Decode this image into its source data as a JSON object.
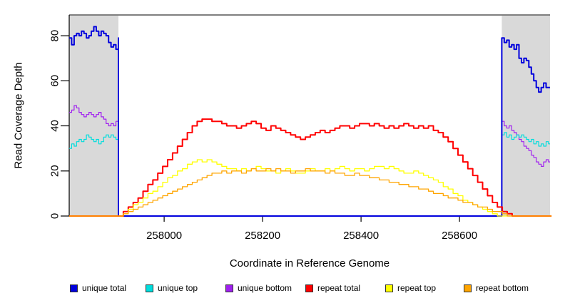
{
  "chart_data": {
    "type": "line",
    "title": "",
    "xlabel": "Coordinate in Reference Genome",
    "ylabel": "Read Coverage Depth",
    "xlim": [
      257807,
      258784
    ],
    "ylim": [
      0,
      89.2
    ],
    "xticks": [
      258000,
      258200,
      258400,
      258600
    ],
    "yticks": [
      0,
      20,
      40,
      60,
      80
    ],
    "grid": false,
    "legend_position": "bottom",
    "shade_color": "#d9d9d9",
    "shaded_regions": [
      {
        "x0": 257807,
        "x1": 257907
      },
      {
        "x0": 258686,
        "x1": 258784
      }
    ],
    "draw_order": [
      2,
      1,
      0,
      3,
      4,
      5
    ],
    "unique_x": [
      257807,
      257812,
      257817,
      257822,
      257827,
      257832,
      257837,
      257842,
      257847,
      257852,
      257857,
      257862,
      257867,
      257872,
      257877,
      257882,
      257887,
      257892,
      257897,
      257902,
      257907,
      257907,
      258686,
      258686,
      258691,
      258696,
      258701,
      258706,
      258711,
      258716,
      258721,
      258726,
      258731,
      258736,
      258741,
      258746,
      258751,
      258756,
      258761,
      258766,
      258771,
      258776,
      258781,
      258784
    ],
    "series": [
      {
        "id": "unique-total",
        "name": "unique total",
        "color": "#0000dd",
        "lw": 2,
        "x_ref": "unique_x",
        "y": [
          79,
          76,
          80,
          81,
          80,
          82,
          81,
          79,
          80,
          82,
          84,
          82,
          80,
          82,
          81,
          80,
          77,
          75,
          76,
          74,
          79,
          0,
          0,
          79,
          77,
          78,
          75,
          76,
          74,
          76,
          70,
          68,
          70,
          69,
          66,
          63,
          60,
          57,
          55,
          57,
          59,
          57,
          57,
          57
        ]
      },
      {
        "id": "unique-top",
        "name": "unique top",
        "color": "#00dddd",
        "lw": 1.2,
        "x_ref": "unique_x",
        "y": [
          30,
          32,
          31,
          33,
          34,
          33,
          34,
          36,
          35,
          34,
          33,
          34,
          32,
          33,
          35,
          36,
          35,
          36,
          35,
          34,
          37,
          0,
          0,
          36,
          37,
          35,
          36,
          34,
          35,
          36,
          35,
          36,
          35,
          34,
          33,
          34,
          32,
          33,
          31,
          32,
          31,
          33,
          32,
          32
        ]
      },
      {
        "id": "unique-bottom",
        "name": "unique bottom",
        "color": "#a020f0",
        "lw": 1.2,
        "x_ref": "unique_x",
        "y": [
          46,
          47,
          49,
          48,
          46,
          45,
          44,
          45,
          46,
          45,
          44,
          45,
          46,
          44,
          43,
          41,
          40,
          41,
          40,
          42,
          42,
          0,
          0,
          42,
          40,
          39,
          40,
          38,
          37,
          36,
          34,
          33,
          31,
          30,
          29,
          27,
          26,
          24,
          23,
          22,
          24,
          25,
          24,
          24
        ]
      },
      {
        "id": "repeat-total",
        "name": "repeat total",
        "color": "#ff0000",
        "lw": 2,
        "x_start": 257807,
        "x_step": 10,
        "y": [
          0,
          0,
          0,
          0,
          0,
          0,
          0,
          0,
          0,
          0,
          0,
          2,
          4,
          6,
          8,
          11,
          14,
          16,
          19,
          22,
          25,
          28,
          31,
          34,
          37,
          40,
          42,
          43,
          43,
          42,
          42,
          41,
          40,
          40,
          39,
          40,
          41,
          42,
          41,
          39,
          38,
          40,
          39,
          38,
          37,
          36,
          35,
          34,
          35,
          36,
          37,
          38,
          37,
          38,
          39,
          40,
          40,
          39,
          40,
          41,
          41,
          40,
          41,
          40,
          39,
          40,
          39,
          40,
          41,
          40,
          39,
          40,
          39,
          40,
          38,
          37,
          35,
          33,
          30,
          27,
          24,
          21,
          18,
          15,
          12,
          9,
          6,
          4,
          2,
          1,
          0,
          0,
          0,
          0,
          0,
          0,
          0,
          0,
          0
        ]
      },
      {
        "id": "repeat-top",
        "name": "repeat top",
        "color": "#ffff00",
        "lw": 1.3,
        "x_start": 257807,
        "x_step": 10,
        "y": [
          0,
          0,
          0,
          0,
          0,
          0,
          0,
          0,
          0,
          0,
          0,
          1,
          3,
          5,
          6,
          8,
          10,
          11,
          13,
          15,
          17,
          18,
          20,
          21,
          23,
          24,
          25,
          24,
          25,
          24,
          23,
          22,
          21,
          21,
          20,
          21,
          20,
          21,
          22,
          21,
          20,
          20,
          19,
          20,
          21,
          20,
          19,
          19,
          20,
          21,
          20,
          20,
          21,
          20,
          21,
          22,
          21,
          20,
          21,
          21,
          20,
          21,
          22,
          22,
          21,
          22,
          21,
          20,
          19,
          19,
          20,
          19,
          18,
          17,
          16,
          15,
          13,
          12,
          10,
          9,
          7,
          6,
          5,
          4,
          3,
          2,
          1,
          0,
          0,
          0,
          0,
          0,
          0,
          0,
          0,
          0,
          0,
          0,
          0
        ]
      },
      {
        "id": "repeat-bottom",
        "name": "repeat bottom",
        "color": "#ffa500",
        "lw": 1.3,
        "x_start": 257807,
        "x_step": 10,
        "y": [
          0,
          0,
          0,
          0,
          0,
          0,
          0,
          0,
          0,
          0,
          0,
          1,
          2,
          3,
          4,
          5,
          6,
          7,
          8,
          9,
          10,
          11,
          12,
          13,
          14,
          15,
          16,
          17,
          18,
          19,
          19,
          20,
          19,
          20,
          20,
          19,
          20,
          21,
          20,
          20,
          21,
          20,
          21,
          20,
          20,
          19,
          20,
          20,
          21,
          20,
          20,
          20,
          19,
          20,
          19,
          19,
          18,
          18,
          19,
          18,
          18,
          17,
          17,
          16,
          16,
          15,
          15,
          14,
          14,
          13,
          13,
          12,
          12,
          11,
          10,
          10,
          9,
          8,
          8,
          7,
          6,
          6,
          5,
          4,
          4,
          3,
          2,
          2,
          1,
          0,
          0,
          0,
          0,
          0,
          0,
          0,
          0,
          0,
          0
        ]
      }
    ]
  }
}
